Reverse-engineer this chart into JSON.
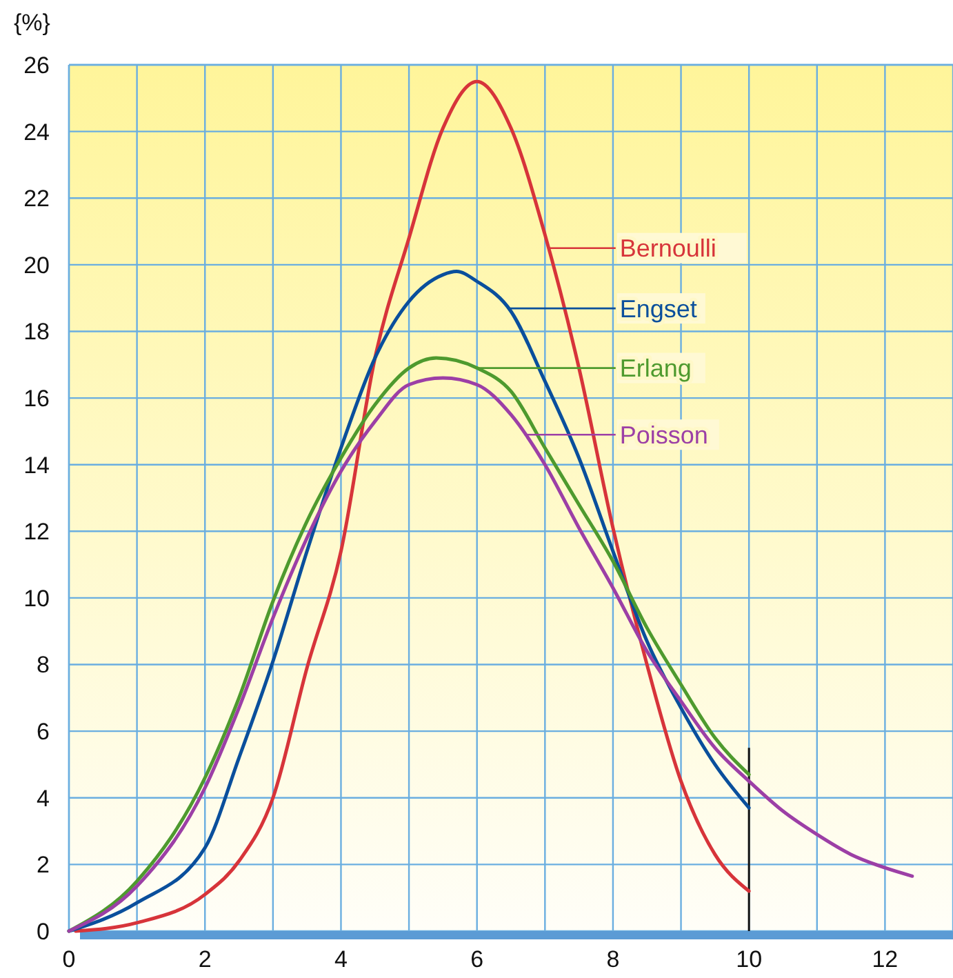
{
  "chart_data": {
    "type": "line",
    "ylabel": "{%}",
    "xlim": [
      0,
      13
    ],
    "ylim": [
      0,
      26
    ],
    "xticks": [
      0,
      2,
      4,
      6,
      8,
      10,
      12
    ],
    "yticks": [
      0,
      2,
      {
        "value": 4,
        "label": "4"
      },
      6,
      8,
      10,
      12,
      14,
      16,
      18,
      20,
      22,
      24,
      26
    ],
    "grid": true,
    "legend": "right",
    "line_style": "solid",
    "marker": "none",
    "series": [
      {
        "name": "Bernoulli",
        "color": "#d7343a",
        "x": [
          0.1,
          1,
          2,
          2.5,
          3,
          3.5,
          4,
          4.5,
          5,
          5.5,
          6,
          6.5,
          7,
          7.5,
          8,
          8.5,
          9,
          9.5,
          10
        ],
        "values": [
          0,
          0.25,
          1.1,
          2.1,
          4,
          7.9,
          11.4,
          17.2,
          20.8,
          24.1,
          25.5,
          24.1,
          20.9,
          16.9,
          12.1,
          8,
          4.5,
          2.3,
          1.2
        ]
      },
      {
        "name": "Engset",
        "color": "#0a4f9c",
        "x": [
          0,
          1,
          2,
          2.5,
          3,
          3.5,
          4,
          4.5,
          5,
          5.5,
          5.7,
          6,
          6.5,
          7,
          7.5,
          8,
          8.5,
          9,
          9.5,
          10
        ],
        "values": [
          0,
          0.85,
          2.5,
          5.2,
          8.1,
          11.4,
          14.5,
          17.2,
          18.9,
          19.7,
          19.8,
          19.5,
          18.6,
          16.5,
          14.2,
          11.4,
          8.7,
          6.7,
          5,
          3.7
        ]
      },
      {
        "name": "Erlang",
        "color": "#4e9a2e",
        "x": [
          0,
          1,
          2,
          2.5,
          3,
          3.5,
          4,
          4.5,
          5,
          5.4,
          6,
          6.5,
          7,
          7.5,
          8,
          8.5,
          9,
          9.5,
          10
        ],
        "values": [
          0,
          1.5,
          4.6,
          7,
          9.9,
          12.3,
          14.2,
          15.8,
          16.9,
          17.2,
          16.9,
          16.2,
          14.5,
          12.8,
          11.1,
          9.1,
          7.4,
          5.8,
          4.7
        ]
      },
      {
        "name": "Poisson",
        "color": "#9c3fa6",
        "x": [
          0,
          1,
          2,
          2.5,
          3,
          3.5,
          4,
          4.5,
          5,
          5.5,
          6,
          6.5,
          7,
          7.5,
          8,
          8.5,
          9,
          9.5,
          10,
          10.5,
          11,
          11.5,
          12,
          12.4
        ],
        "values": [
          0,
          1.35,
          4.3,
          6.7,
          9.4,
          11.8,
          13.8,
          15.3,
          16.4,
          16.6,
          16.4,
          15.5,
          14,
          12.1,
          10.3,
          8.4,
          6.9,
          5.5,
          4.5,
          3.6,
          2.9,
          2.3,
          1.9,
          1.65
        ]
      }
    ]
  }
}
